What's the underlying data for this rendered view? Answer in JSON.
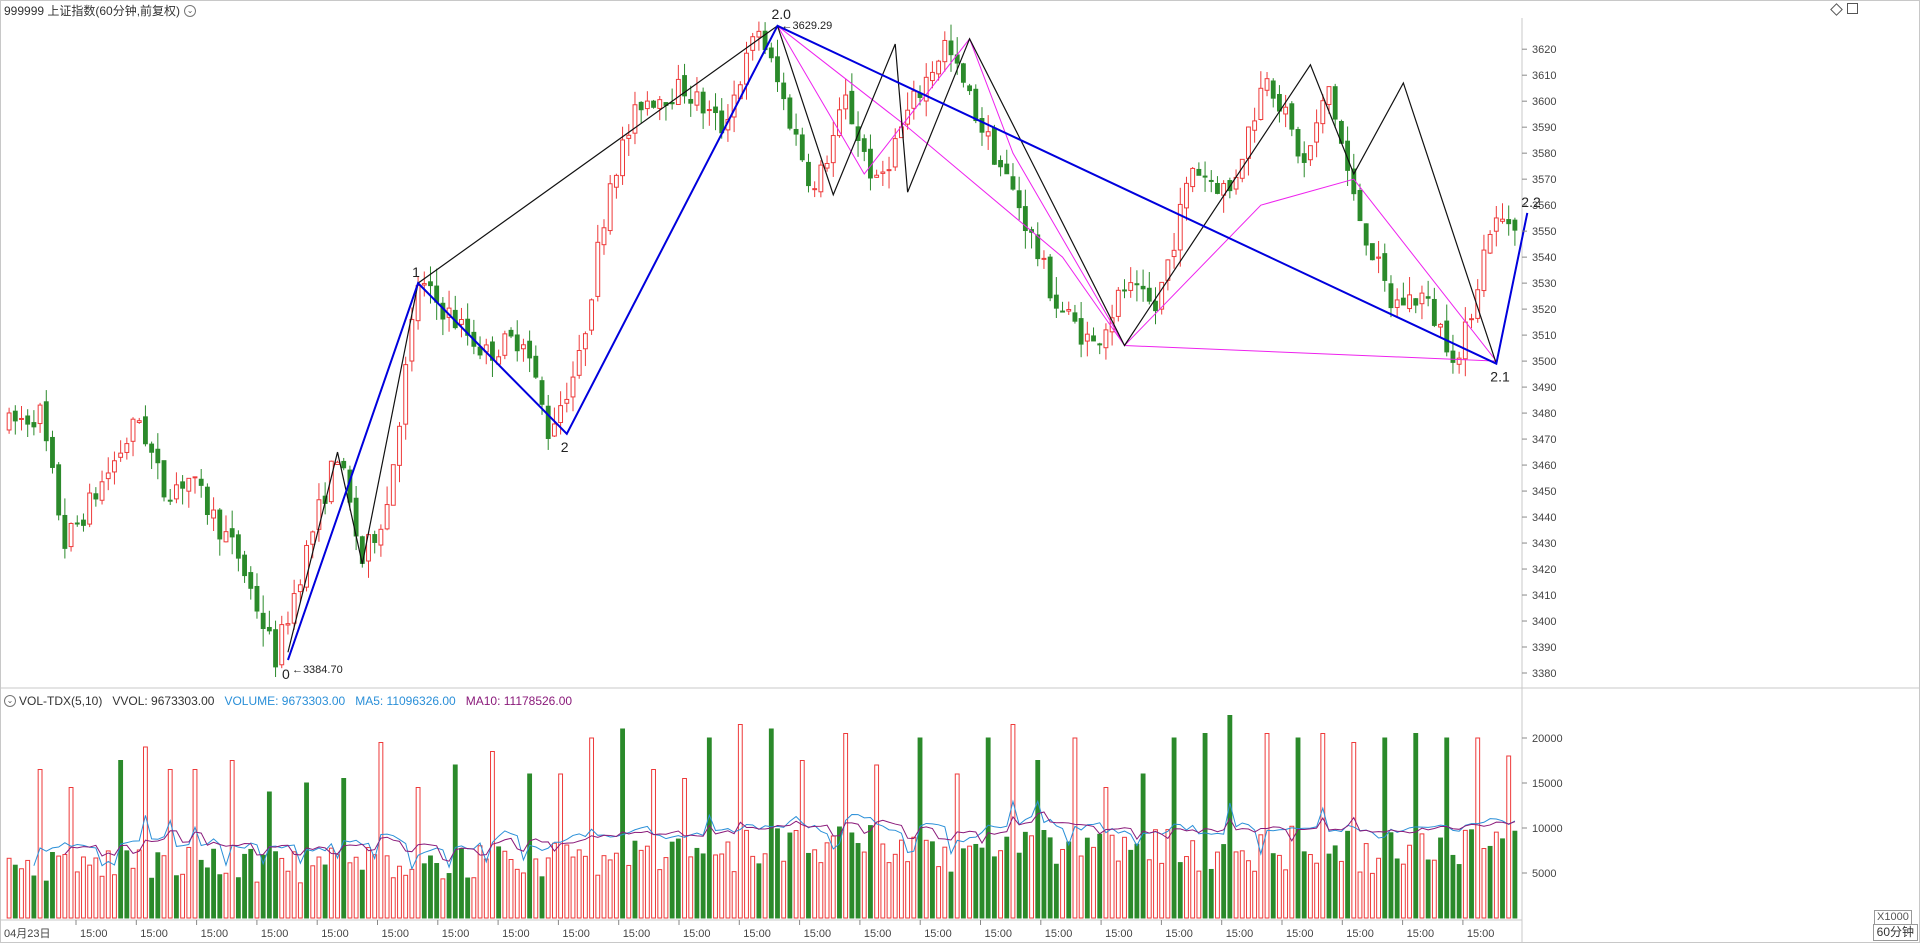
{
  "header": {
    "instrument": "999999 上证指数(60分钟,前复权)"
  },
  "volume_header": {
    "indicator": "VOL-TDX(5,10)",
    "vvol": "VVOL: 9673303.00",
    "volume": "VOLUME: 9673303.00",
    "ma5": "MA5: 11096326.00",
    "ma10": "MA10: 11178526.00"
  },
  "footer": {
    "period_label": "60分钟",
    "unit_label": "X1000"
  },
  "colors": {
    "up": "#ee3a3a",
    "down": "#2b8a2b",
    "wave_main": "#0000dd",
    "wave_minor": "#111111",
    "channel": "#ee22ee",
    "ma5": "#2a8fd8",
    "ma10": "#8a1a7a"
  },
  "chart_data": [
    {
      "type": "candlestick",
      "yaxis_ticks": [
        3380,
        3390,
        3400,
        3410,
        3420,
        3430,
        3440,
        3450,
        3460,
        3470,
        3480,
        3490,
        3500,
        3510,
        3520,
        3530,
        3540,
        3550,
        3560,
        3570,
        3580,
        3590,
        3600,
        3610,
        3620
      ],
      "ylim": [
        3375,
        3632
      ],
      "x_tick_labels": [
        "04月23日",
        "15:00",
        "15:00",
        "15:00",
        "15:00",
        "15:00",
        "15:00",
        "15:00",
        "15:00",
        "15:00",
        "15:00",
        "15:00",
        "15:00",
        "15:00",
        "15:00",
        "15:00",
        "15:00",
        "15:00",
        "15:00",
        "15:00",
        "15:00",
        "15:00",
        "15:00",
        "15:00",
        "15:00"
      ],
      "candle_count": 244,
      "price_path": [
        [
          0,
          3475
        ],
        [
          6,
          3480
        ],
        [
          10,
          3430
        ],
        [
          14,
          3445
        ],
        [
          22,
          3478
        ],
        [
          26,
          3450
        ],
        [
          30,
          3455
        ],
        [
          38,
          3425
        ],
        [
          44,
          3386
        ],
        [
          50,
          3435
        ],
        [
          54,
          3465
        ],
        [
          58,
          3423
        ],
        [
          62,
          3445
        ],
        [
          67,
          3530
        ],
        [
          72,
          3518
        ],
        [
          78,
          3503
        ],
        [
          84,
          3510
        ],
        [
          88,
          3473
        ],
        [
          93,
          3500
        ],
        [
          98,
          3570
        ],
        [
          103,
          3600
        ],
        [
          110,
          3605
        ],
        [
          116,
          3590
        ],
        [
          122,
          3628
        ],
        [
          126,
          3600
        ],
        [
          131,
          3565
        ],
        [
          136,
          3600
        ],
        [
          141,
          3567
        ],
        [
          146,
          3595
        ],
        [
          152,
          3622
        ],
        [
          158,
          3590
        ],
        [
          164,
          3560
        ],
        [
          170,
          3522
        ],
        [
          176,
          3506
        ],
        [
          181,
          3528
        ],
        [
          186,
          3520
        ],
        [
          192,
          3575
        ],
        [
          198,
          3565
        ],
        [
          204,
          3612
        ],
        [
          210,
          3575
        ],
        [
          214,
          3605
        ],
        [
          218,
          3562
        ],
        [
          224,
          3522
        ],
        [
          229,
          3525
        ],
        [
          235,
          3500
        ],
        [
          240,
          3552
        ],
        [
          244,
          3555
        ]
      ],
      "annotations": [
        {
          "label": "0",
          "price_label": "3384.70",
          "x": 45,
          "y": 3384.7
        },
        {
          "label": "1",
          "x": 66,
          "y": 3530
        },
        {
          "label": "2",
          "x": 90,
          "y": 3472
        },
        {
          "label": "2.0",
          "price_label": "3629.29",
          "x": 124,
          "y": 3629.29
        },
        {
          "label": "2.1",
          "x": 240,
          "y": 3499
        },
        {
          "label": "2.2",
          "x": 245,
          "y": 3557
        }
      ],
      "wave_main": [
        [
          45,
          3385
        ],
        [
          66,
          3530
        ],
        [
          90,
          3472
        ],
        [
          124,
          3629
        ],
        [
          240,
          3499
        ],
        [
          245,
          3557
        ]
      ],
      "wave_minor": [
        [
          45,
          3388
        ],
        [
          53,
          3465
        ],
        [
          57,
          3422
        ],
        [
          66,
          3530
        ],
        [
          124,
          3629
        ],
        [
          133,
          3564
        ],
        [
          143,
          3622
        ],
        [
          145,
          3565
        ],
        [
          155,
          3624
        ],
        [
          180,
          3506
        ],
        [
          210,
          3614
        ],
        [
          217,
          3572
        ],
        [
          225,
          3607
        ],
        [
          240,
          3499
        ]
      ],
      "channel": [
        [
          124,
          3629
        ],
        [
          145,
          3590
        ],
        [
          170,
          3540
        ],
        [
          180,
          3506
        ],
        [
          202,
          3560
        ],
        [
          217,
          3570
        ],
        [
          240,
          3500
        ],
        [
          180,
          3506
        ],
        [
          162,
          3580
        ],
        [
          155,
          3624
        ],
        [
          138,
          3572
        ],
        [
          124,
          3629
        ]
      ]
    },
    {
      "type": "bar",
      "title": "VOL-TDX(5,10)",
      "unit": "X1000",
      "yaxis_ticks": [
        5000,
        10000,
        15000,
        20000
      ],
      "ylim": [
        0,
        24000
      ],
      "series": [
        {
          "name": "VOLUME",
          "last": 9673303.0
        },
        {
          "name": "MA5",
          "last": 11096326.0
        },
        {
          "name": "MA10",
          "last": 11178526.0
        }
      ],
      "volume_path": [
        [
          0,
          8000
        ],
        [
          20,
          9000
        ],
        [
          40,
          8500
        ],
        [
          60,
          9000
        ],
        [
          80,
          9500
        ],
        [
          100,
          10500
        ],
        [
          120,
          11000
        ],
        [
          140,
          11500
        ],
        [
          160,
          11000
        ],
        [
          180,
          11000
        ],
        [
          200,
          11500
        ],
        [
          220,
          11000
        ],
        [
          244,
          11000
        ]
      ],
      "volume_spikes": [
        [
          5,
          16500
        ],
        [
          10,
          14500
        ],
        [
          18,
          17500
        ],
        [
          22,
          19000
        ],
        [
          26,
          16500
        ],
        [
          30,
          16500
        ],
        [
          36,
          17500
        ],
        [
          42,
          14000
        ],
        [
          48,
          15000
        ],
        [
          54,
          15500
        ],
        [
          60,
          19500
        ],
        [
          66,
          14500
        ],
        [
          72,
          17000
        ],
        [
          78,
          18500
        ],
        [
          84,
          16000
        ],
        [
          89,
          16000
        ],
        [
          94,
          20000
        ],
        [
          99,
          21000
        ],
        [
          104,
          16500
        ],
        [
          109,
          15500
        ],
        [
          113,
          20000
        ],
        [
          118,
          21500
        ],
        [
          123,
          21000
        ],
        [
          128,
          17500
        ],
        [
          135,
          20500
        ],
        [
          140,
          17000
        ],
        [
          147,
          20000
        ],
        [
          153,
          16000
        ],
        [
          158,
          20000
        ],
        [
          162,
          21500
        ],
        [
          166,
          17500
        ],
        [
          172,
          20000
        ],
        [
          177,
          14500
        ],
        [
          183,
          16000
        ],
        [
          188,
          20000
        ],
        [
          193,
          20500
        ],
        [
          197,
          22500
        ],
        [
          203,
          20500
        ],
        [
          208,
          20000
        ],
        [
          212,
          20500
        ],
        [
          217,
          19500
        ],
        [
          222,
          20000
        ],
        [
          227,
          20500
        ],
        [
          232,
          20000
        ],
        [
          237,
          20000
        ],
        [
          242,
          18000
        ]
      ]
    }
  ]
}
